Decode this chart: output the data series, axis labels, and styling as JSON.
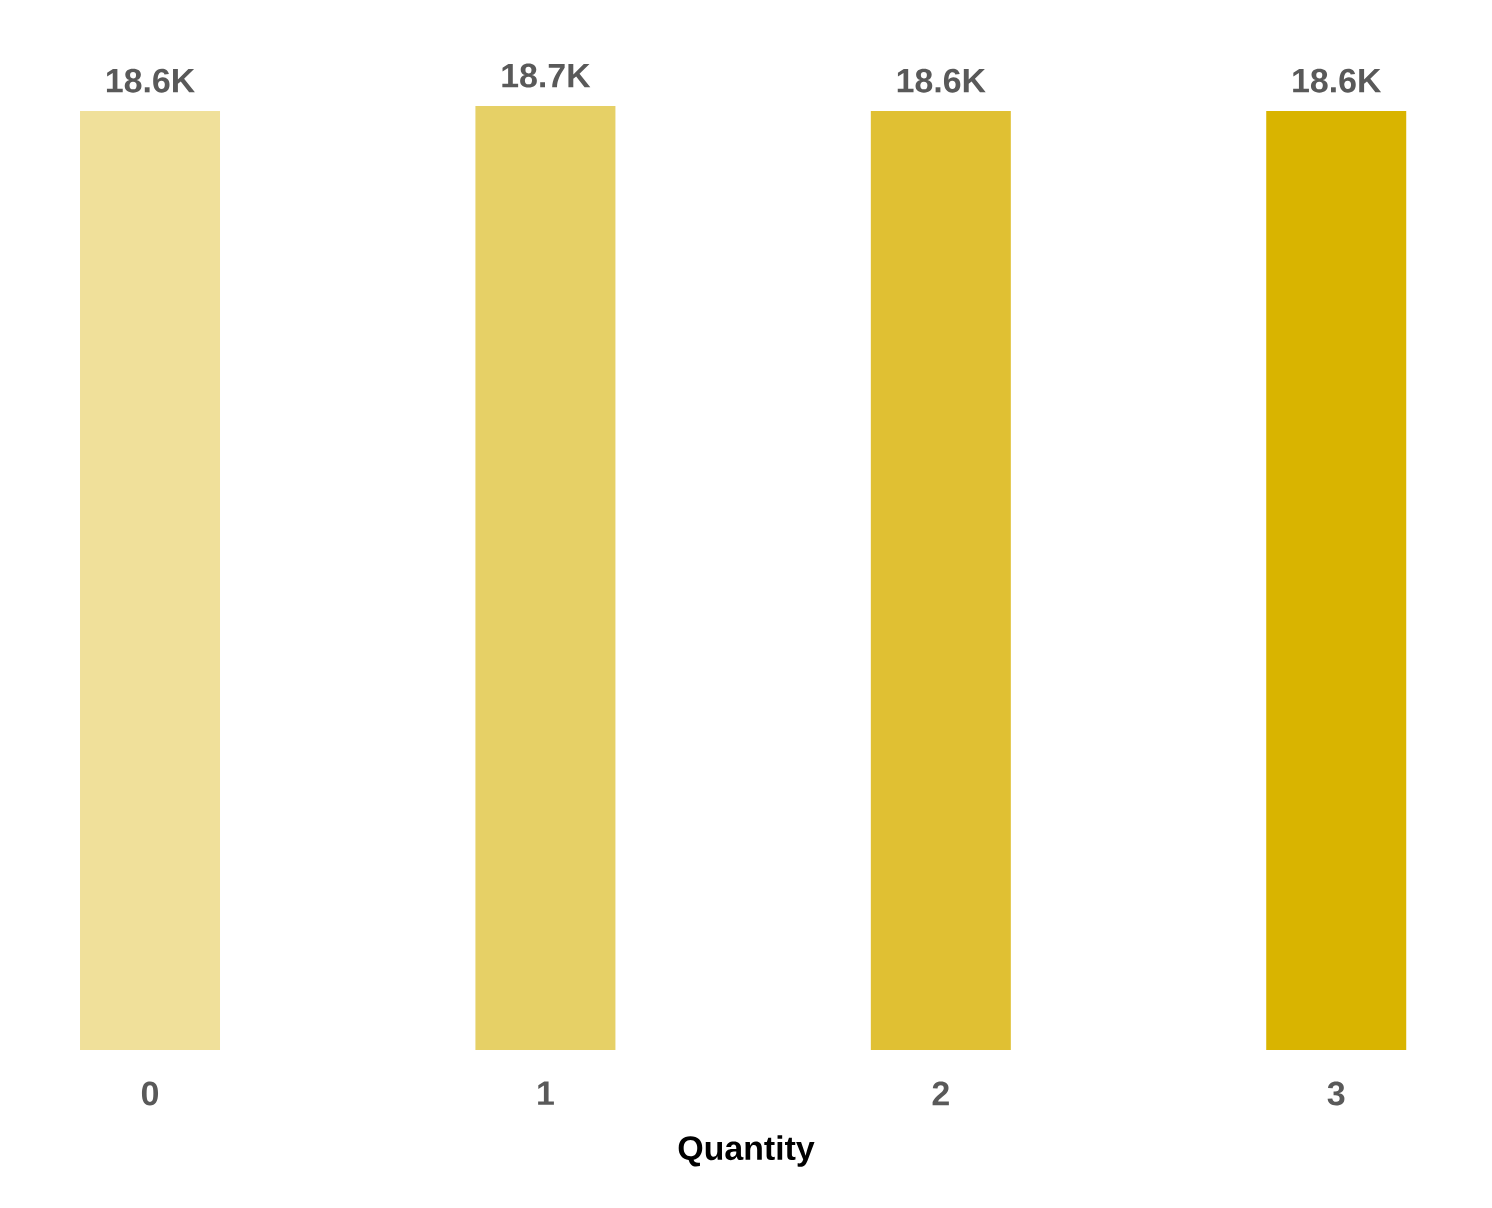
{
  "chart_data": {
    "type": "bar",
    "xlabel": "Quantity",
    "categories": [
      "0",
      "1",
      "2",
      "3"
    ],
    "values": [
      18600,
      18700,
      18600,
      18600
    ],
    "value_labels": [
      "18.6K",
      "18.7K",
      "18.6K",
      "18.6K"
    ],
    "colors": [
      "#f0e09a",
      "#e6d066",
      "#e0c033",
      "#d9b400"
    ],
    "tick_labels": "x"
  }
}
